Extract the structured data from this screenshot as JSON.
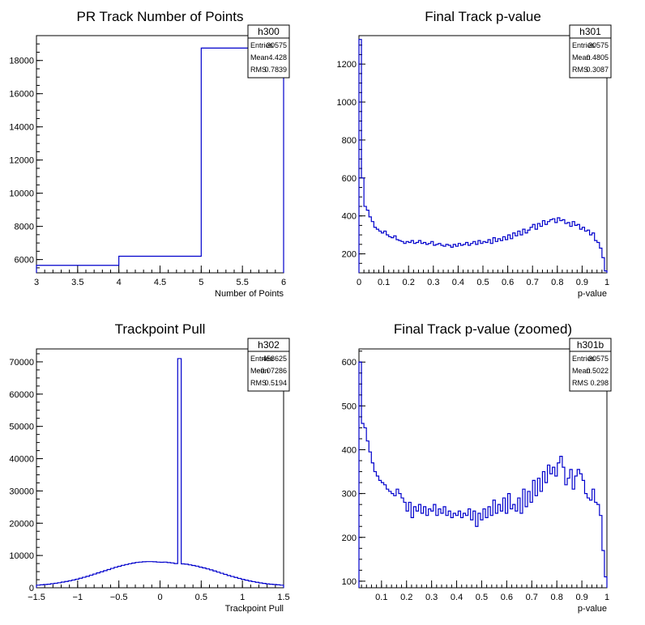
{
  "chart_data": [
    {
      "type": "histogram",
      "title": "PR Track Number of Points",
      "xlabel": "Number of Points",
      "ylabel": "",
      "xlim": [
        3,
        6
      ],
      "ylim": [
        5200,
        19500
      ],
      "xticks": [
        "3",
        "3.5",
        "4",
        "4.5",
        "5",
        "5.5",
        "6"
      ],
      "xtick_values": [
        3,
        3.5,
        4,
        4.5,
        5,
        5.5,
        6
      ],
      "yticks": [
        "6000",
        "8000",
        "10000",
        "12000",
        "14000",
        "16000",
        "18000"
      ],
      "ytick_values": [
        6000,
        8000,
        10000,
        12000,
        14000,
        16000,
        18000
      ],
      "bin_edges": [
        3,
        4,
        5,
        6
      ],
      "values": [
        5650,
        6200,
        18750
      ],
      "color": "#0000cc",
      "stats": {
        "name": "h300",
        "rows": [
          [
            "Entries",
            "30575"
          ],
          [
            "Mean",
            "4.428"
          ],
          [
            "RMS",
            "0.7839"
          ]
        ]
      }
    },
    {
      "type": "histogram",
      "title": "Final Track p-value",
      "xlabel": "p-value",
      "ylabel": "",
      "xlim": [
        0,
        1
      ],
      "ylim": [
        100,
        1350
      ],
      "xticks": [
        "0",
        "0.1",
        "0.2",
        "0.3",
        "0.4",
        "0.5",
        "0.6",
        "0.7",
        "0.8",
        "0.9",
        "1"
      ],
      "xtick_values": [
        0,
        0.1,
        0.2,
        0.3,
        0.4,
        0.5,
        0.6,
        0.7,
        0.8,
        0.9,
        1
      ],
      "yticks": [
        "200",
        "400",
        "600",
        "800",
        "1000",
        "1200"
      ],
      "ytick_values": [
        200,
        400,
        600,
        800,
        1000,
        1200
      ],
      "bin_edges_range": [
        0,
        1
      ],
      "values": [
        1330,
        600,
        450,
        430,
        395,
        370,
        340,
        330,
        320,
        310,
        320,
        300,
        290,
        285,
        295,
        275,
        270,
        265,
        255,
        265,
        260,
        270,
        255,
        260,
        270,
        255,
        260,
        250,
        255,
        265,
        245,
        250,
        255,
        245,
        240,
        250,
        245,
        235,
        250,
        240,
        255,
        245,
        250,
        260,
        245,
        255,
        265,
        250,
        270,
        255,
        265,
        260,
        275,
        255,
        285,
        265,
        280,
        270,
        290,
        275,
        300,
        280,
        310,
        295,
        320,
        300,
        330,
        310,
        325,
        340,
        355,
        330,
        360,
        345,
        375,
        355,
        370,
        380,
        385,
        365,
        390,
        375,
        380,
        360,
        365,
        345,
        370,
        350,
        355,
        330,
        340,
        320,
        325,
        300,
        310,
        270,
        260,
        230,
        180,
        110
      ],
      "color": "#0000cc",
      "stats": {
        "name": "h301",
        "rows": [
          [
            "Entries",
            "30575"
          ],
          [
            "Mean",
            "0.4805"
          ],
          [
            "RMS",
            "0.3087"
          ]
        ]
      }
    },
    {
      "type": "histogram",
      "title": "Trackpoint Pull",
      "xlabel": "Trackpoint Pull",
      "ylabel": "",
      "xlim": [
        -1.5,
        1.5
      ],
      "ylim": [
        0,
        74000
      ],
      "xticks": [
        "−1.5",
        "−1",
        "−0.5",
        "0",
        "0.5",
        "1",
        "1.5"
      ],
      "xtick_values": [
        -1.5,
        -1,
        -0.5,
        0,
        0.5,
        1,
        1.5
      ],
      "yticks": [
        "0",
        "10000",
        "20000",
        "30000",
        "40000",
        "50000",
        "60000",
        "70000"
      ],
      "ytick_values": [
        0,
        10000,
        20000,
        30000,
        40000,
        50000,
        60000,
        70000
      ],
      "bin_edges_range": [
        -1.5,
        1.5
      ],
      "values": [
        800,
        900,
        1000,
        1100,
        1250,
        1400,
        1550,
        1750,
        1950,
        2150,
        2400,
        2650,
        2950,
        3250,
        3550,
        3900,
        4250,
        4600,
        4950,
        5300,
        5650,
        6000,
        6350,
        6650,
        6950,
        7200,
        7450,
        7650,
        7850,
        7950,
        8050,
        8100,
        8100,
        8050,
        7950,
        7900,
        7950,
        7800,
        7700,
        7500,
        71000,
        7400,
        7300,
        7100,
        6900,
        6700,
        6400,
        6150,
        5850,
        5550,
        5200,
        4850,
        4500,
        4150,
        3800,
        3500,
        3200,
        2900,
        2600,
        2350,
        2100,
        1900,
        1700,
        1500,
        1350,
        1200,
        1100,
        1000,
        900,
        800
      ],
      "color": "#0000cc",
      "stats": {
        "name": "h302",
        "rows": [
          [
            "Entries",
            "458625"
          ],
          [
            "Mean",
            "−0.07286"
          ],
          [
            "RMS",
            "0.5194"
          ]
        ]
      }
    },
    {
      "type": "histogram",
      "title": "Final Track p-value (zoomed)",
      "xlabel": "p-value",
      "ylabel": "",
      "xlim": [
        0.01,
        1.0
      ],
      "ylim": [
        85,
        630
      ],
      "xticks": [
        "0.1",
        "0.2",
        "0.3",
        "0.4",
        "0.5",
        "0.6",
        "0.7",
        "0.8",
        "0.9",
        "1"
      ],
      "xtick_values": [
        0.1,
        0.2,
        0.3,
        0.4,
        0.5,
        0.6,
        0.7,
        0.8,
        0.9,
        1.0
      ],
      "yticks": [
        "100",
        "200",
        "300",
        "400",
        "500",
        "600"
      ],
      "ytick_values": [
        100,
        200,
        300,
        400,
        500,
        600
      ],
      "bin_edges_range": [
        0.01,
        1.0
      ],
      "values": [
        600,
        460,
        450,
        420,
        395,
        370,
        350,
        340,
        330,
        325,
        320,
        310,
        305,
        300,
        295,
        310,
        300,
        290,
        280,
        260,
        280,
        245,
        270,
        260,
        275,
        255,
        270,
        250,
        265,
        260,
        275,
        250,
        265,
        255,
        270,
        250,
        260,
        245,
        255,
        250,
        260,
        245,
        255,
        250,
        265,
        240,
        260,
        225,
        255,
        240,
        265,
        245,
        270,
        250,
        285,
        255,
        275,
        260,
        290,
        255,
        300,
        265,
        275,
        260,
        290,
        255,
        310,
        270,
        305,
        280,
        330,
        295,
        335,
        305,
        350,
        325,
        365,
        345,
        360,
        340,
        370,
        385,
        360,
        320,
        335,
        355,
        310,
        340,
        355,
        345,
        330,
        300,
        290,
        285,
        310,
        280,
        275,
        250,
        170,
        110
      ],
      "color": "#0000cc",
      "stats": {
        "name": "h301b",
        "rows": [
          [
            "Entries",
            "30575"
          ],
          [
            "Mean",
            "0.5022"
          ],
          [
            "RMS",
            "0.298"
          ]
        ]
      }
    }
  ]
}
